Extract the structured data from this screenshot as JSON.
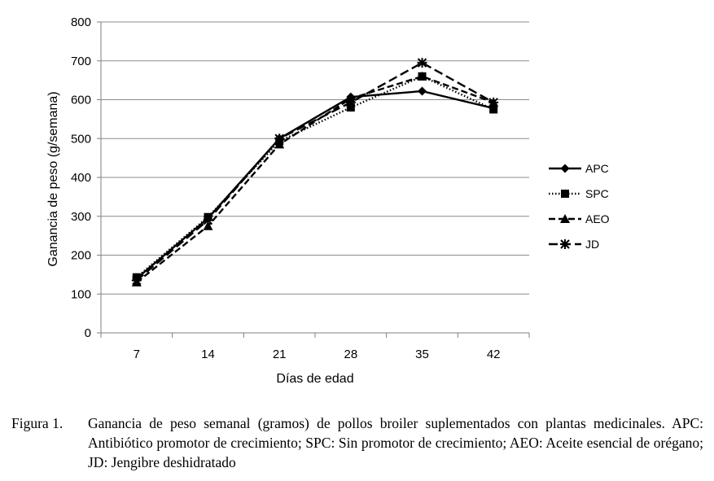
{
  "chart_data": {
    "type": "line",
    "xlabel": "Días de edad",
    "ylabel": "Ganancia de peso (g/semana)",
    "categories": [
      "7",
      "14",
      "21",
      "28",
      "35",
      "42"
    ],
    "ylim": [
      0,
      800
    ],
    "yticks": [
      "0",
      "100",
      "200",
      "300",
      "400",
      "500",
      "600",
      "700",
      "800"
    ],
    "grid": "horizontal",
    "legend_position": "right",
    "series": [
      {
        "name": "APC",
        "marker": "diamond",
        "dash": "solid",
        "values": [
          140,
          295,
          500,
          607,
          622,
          578
        ]
      },
      {
        "name": "SPC",
        "marker": "square",
        "dash": "dotted",
        "values": [
          143,
          298,
          493,
          580,
          660,
          575
        ]
      },
      {
        "name": "AEO",
        "marker": "triangle",
        "dash": "dashed",
        "values": [
          130,
          275,
          485,
          603,
          660,
          593
        ]
      },
      {
        "name": "JD",
        "marker": "star",
        "dash": "longdash",
        "values": [
          135,
          290,
          500,
          593,
          695,
          593
        ]
      }
    ]
  },
  "caption": {
    "label": "Figura 1.",
    "text": "Ganancia de peso semanal (gramos) de pollos broiler suplementados con plantas medicinales. APC: Antibiótico promotor de crecimiento; SPC: Sin promotor de crecimiento; AEO: Aceite esencial de orégano; JD: Jengibre deshidratado"
  }
}
